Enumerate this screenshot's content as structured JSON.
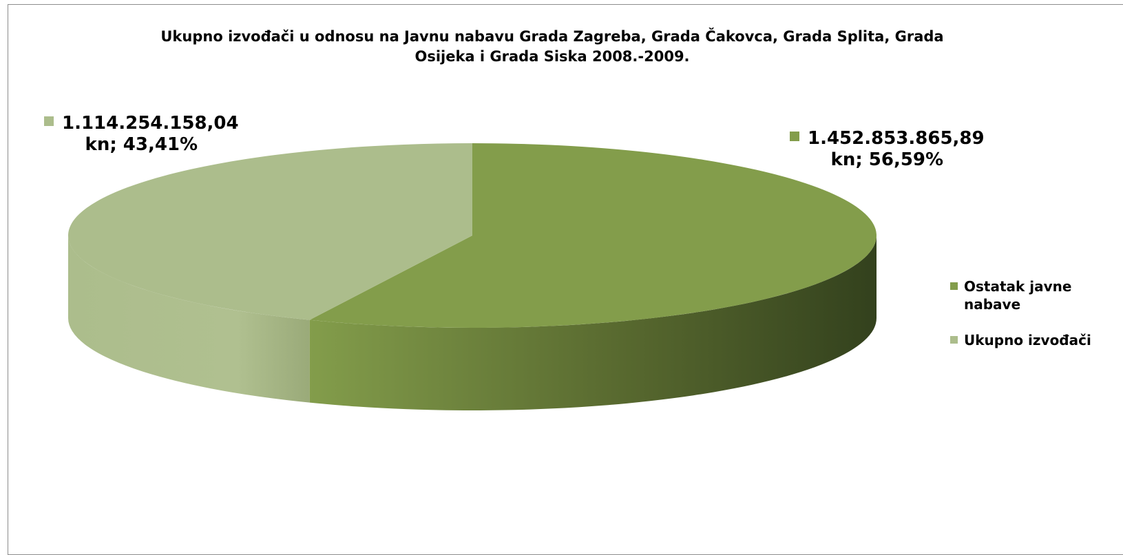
{
  "chart_data": {
    "type": "pie",
    "title_lines": [
      "Ukupno izvođači u odnosu na Javnu nabavu Grada Zagreba, Grada Čakovca, Grada Splita, Grada",
      "Osijeka i Grada Siska 2008.-2009."
    ],
    "style": "3d",
    "legend_position": "right",
    "slices": [
      {
        "name": "Ostatak javne nabave",
        "value": 1452853865.89,
        "percent": 56.59,
        "label_line1": "1.452.853.865,89",
        "label_line2": "kn; 56,59%",
        "color": "#839d4b",
        "side_dark": "#33411d"
      },
      {
        "name": "Ukupno izvođači",
        "value": 1114254158.04,
        "percent": 43.41,
        "label_line1": "1.114.254.158,04",
        "label_line2": "kn; 43,41%",
        "color": "#acbd8c",
        "side_dark": "#9aaa79"
      }
    ]
  }
}
